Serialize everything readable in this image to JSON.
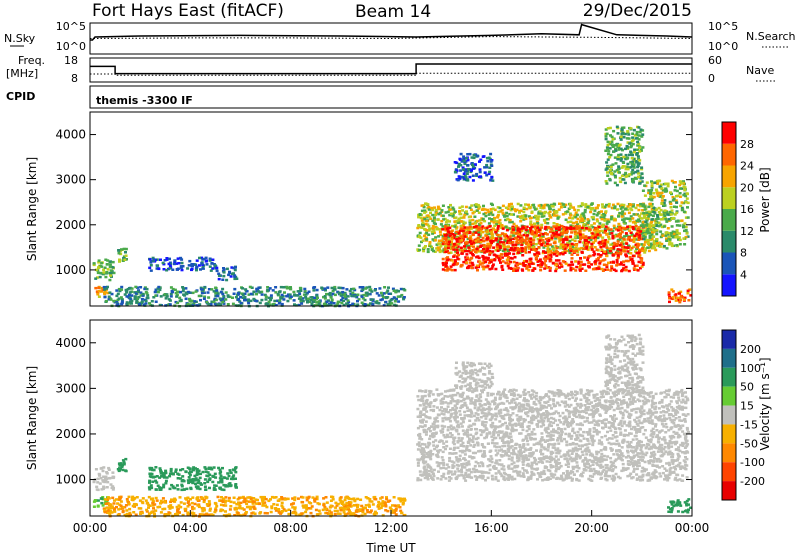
{
  "header": {
    "title": "Fort Hays East (fitACF)",
    "beam": "Beam 14",
    "date": "29/Dec/2015",
    "nsky_label": "N.Sky",
    "nsearch_label": "N.Search",
    "freq_label_1": "Freq.",
    "freq_label_2": "[MHz]",
    "nave_label": "Nave",
    "cpid_label": "CPID",
    "cpid_value": "themis -3300 IF"
  },
  "colors": {
    "grey_scatter": "#c0c0bc",
    "power_scale": [
      "#1414ff",
      "#1a55b8",
      "#2a8a6a",
      "#4aaa4a",
      "#bcd020",
      "#f7a400",
      "#ff6600",
      "#ff0000"
    ],
    "velocity_scale": [
      "#1a2aa8",
      "#1f6f8a",
      "#2a9a5a",
      "#66cc33",
      "#c0c0bc",
      "#f7b000",
      "#ff8800",
      "#ff4400",
      "#e80000"
    ]
  },
  "chart_data": [
    {
      "type": "line",
      "name": "noise-panel",
      "left_axis_label": "N.Sky",
      "right_axis_label": "N.Search",
      "left_ticks": [
        "10^5",
        "10^0"
      ],
      "right_ticks": [
        "10^5",
        "10^0"
      ],
      "series": [
        {
          "style": "solid",
          "x": [
            0,
            0.1,
            0.2,
            2,
            6,
            10,
            13,
            16,
            18,
            19.5,
            19.6,
            21,
            23,
            24
          ],
          "y": [
            0.45,
            0.45,
            0.55,
            0.58,
            0.6,
            0.58,
            0.55,
            0.6,
            0.65,
            0.62,
            0.95,
            0.62,
            0.58,
            0.55
          ]
        },
        {
          "style": "dotted",
          "x": [
            0,
            4,
            8,
            12,
            16,
            20,
            24
          ],
          "y": [
            0.5,
            0.52,
            0.52,
            0.5,
            0.56,
            0.54,
            0.5
          ]
        }
      ]
    },
    {
      "type": "line",
      "name": "frequency-nave-panel",
      "left_axis_label": "Freq. [MHz]",
      "right_axis_label": "Nave",
      "left_ticks": [
        "18",
        "8"
      ],
      "right_ticks": [
        "60",
        "0"
      ],
      "series": [
        {
          "name": "",
          "style": "solid",
          "unit": "MHz",
          "x": [
            0,
            1.0,
            1.0,
            13.0,
            13.0,
            24
          ],
          "y": [
            14.5,
            14.5,
            11.5,
            11.5,
            15.5,
            15.5
          ]
        },
        {
          "name": "",
          "style": "dotted",
          "unit": "Nave",
          "x": [
            0,
            1.0,
            1.0,
            13.0,
            13.0,
            24
          ],
          "y": [
            20,
            20,
            17,
            17,
            22,
            22
          ]
        }
      ]
    },
    {
      "type": "heatmap",
      "name": "power-panel",
      "ylabel": "Slant Range [km]",
      "yticks": [
        1000,
        2000,
        3000,
        4000
      ],
      "ylim": [
        200,
        4500
      ],
      "xlim": [
        0,
        24
      ],
      "colorbar_label": "Power [dB]",
      "colorbar_ticks": [
        4,
        8,
        12,
        16,
        20,
        24,
        28
      ],
      "regions": [
        {
          "x": [
            0.1,
            0.9
          ],
          "r": [
            800,
            1300
          ],
          "value": 14
        },
        {
          "x": [
            0.1,
            0.7
          ],
          "r": [
            430,
            650
          ],
          "value": 22
        },
        {
          "x": [
            1.0,
            1.4
          ],
          "r": [
            1200,
            1500
          ],
          "value": 14
        },
        {
          "x": [
            2.3,
            5.0
          ],
          "r": [
            1000,
            1300
          ],
          "value": 6
        },
        {
          "x": [
            5.0,
            5.8
          ],
          "r": [
            800,
            1100
          ],
          "value": 6
        },
        {
          "x": [
            0.5,
            12.5
          ],
          "r": [
            220,
            650
          ],
          "value": 10
        },
        {
          "x": [
            13.0,
            22.5
          ],
          "r": [
            1400,
            2500
          ],
          "value": 18
        },
        {
          "x": [
            14.0,
            22.0
          ],
          "r": [
            1000,
            2000
          ],
          "value": 28
        },
        {
          "x": [
            22.0,
            23.8
          ],
          "r": [
            1500,
            3000
          ],
          "value": 16
        },
        {
          "x": [
            14.5,
            16.0
          ],
          "r": [
            3000,
            3600
          ],
          "value": 6
        },
        {
          "x": [
            20.5,
            22.0
          ],
          "r": [
            2900,
            4200
          ],
          "value": 14
        },
        {
          "x": [
            23.0,
            23.9
          ],
          "r": [
            300,
            600
          ],
          "value": 26
        }
      ]
    },
    {
      "type": "heatmap",
      "name": "velocity-panel",
      "ylabel": "Slant Range [km]",
      "yticks": [
        1000,
        2000,
        3000,
        4000
      ],
      "ylim": [
        200,
        4500
      ],
      "xlim": [
        0,
        24
      ],
      "xticks": [
        "00:00",
        "04:00",
        "08:00",
        "12:00",
        "16:00",
        "20:00",
        "00:00"
      ],
      "xlabel": "Time UT",
      "colorbar_label": "Velocity [m s⁻¹]",
      "colorbar_ticks": [
        200,
        100,
        50,
        15,
        -15,
        -50,
        -100,
        -200
      ],
      "regions": [
        {
          "x": [
            0.1,
            0.9
          ],
          "r": [
            800,
            1300
          ],
          "value": 0
        },
        {
          "x": [
            0.1,
            0.7
          ],
          "r": [
            430,
            650
          ],
          "value": 30
        },
        {
          "x": [
            1.0,
            1.4
          ],
          "r": [
            1200,
            1500
          ],
          "value": 40
        },
        {
          "x": [
            2.3,
            5.8
          ],
          "r": [
            800,
            1300
          ],
          "value": 40
        },
        {
          "x": [
            0.5,
            12.5
          ],
          "r": [
            220,
            650
          ],
          "value": -30
        },
        {
          "x": [
            13.0,
            23.8
          ],
          "r": [
            1000,
            3000
          ],
          "value": 0
        },
        {
          "x": [
            14.5,
            16.0
          ],
          "r": [
            3000,
            3600
          ],
          "value": 0
        },
        {
          "x": [
            20.5,
            22.0
          ],
          "r": [
            2900,
            4200
          ],
          "value": 0
        },
        {
          "x": [
            23.0,
            23.9
          ],
          "r": [
            300,
            600
          ],
          "value": 40
        }
      ]
    }
  ]
}
